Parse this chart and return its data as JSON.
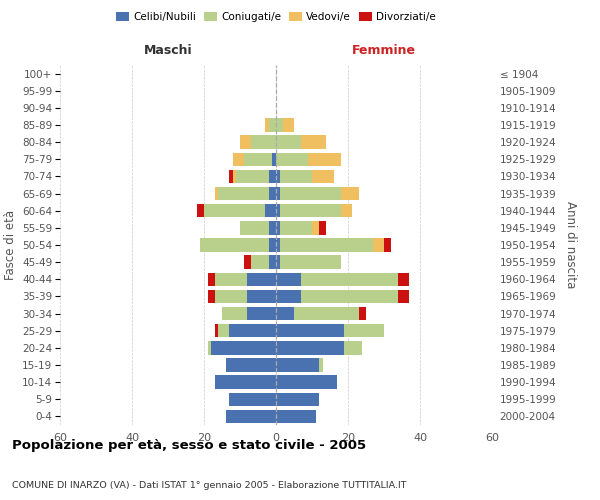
{
  "age_groups": [
    "0-4",
    "5-9",
    "10-14",
    "15-19",
    "20-24",
    "25-29",
    "30-34",
    "35-39",
    "40-44",
    "45-49",
    "50-54",
    "55-59",
    "60-64",
    "65-69",
    "70-74",
    "75-79",
    "80-84",
    "85-89",
    "90-94",
    "95-99",
    "100+"
  ],
  "birth_years": [
    "2000-2004",
    "1995-1999",
    "1990-1994",
    "1985-1989",
    "1980-1984",
    "1975-1979",
    "1970-1974",
    "1965-1969",
    "1960-1964",
    "1955-1959",
    "1950-1954",
    "1945-1949",
    "1940-1944",
    "1935-1939",
    "1930-1934",
    "1925-1929",
    "1920-1924",
    "1915-1919",
    "1910-1914",
    "1905-1909",
    "≤ 1904"
  ],
  "colors": {
    "celibe": "#4a72b0",
    "coniugato": "#b8d08c",
    "vedovo": "#f0c060",
    "divorziato": "#cc1111"
  },
  "maschi": {
    "celibe": [
      14,
      13,
      17,
      14,
      18,
      13,
      8,
      8,
      8,
      2,
      2,
      2,
      3,
      2,
      2,
      1,
      0,
      0,
      0,
      0,
      0
    ],
    "coniugato": [
      0,
      0,
      0,
      0,
      1,
      3,
      7,
      9,
      9,
      5,
      19,
      8,
      17,
      14,
      9,
      8,
      7,
      2,
      0,
      0,
      0
    ],
    "vedovo": [
      0,
      0,
      0,
      0,
      0,
      0,
      0,
      0,
      0,
      0,
      0,
      0,
      0,
      1,
      1,
      3,
      3,
      1,
      0,
      0,
      0
    ],
    "divorziato": [
      0,
      0,
      0,
      0,
      0,
      1,
      0,
      2,
      2,
      2,
      0,
      0,
      2,
      0,
      1,
      0,
      0,
      0,
      0,
      0,
      0
    ]
  },
  "femmine": {
    "nubile": [
      11,
      12,
      17,
      12,
      19,
      19,
      5,
      7,
      7,
      1,
      1,
      1,
      1,
      1,
      1,
      0,
      0,
      0,
      0,
      0,
      0
    ],
    "coniugata": [
      0,
      0,
      0,
      1,
      5,
      11,
      18,
      27,
      27,
      17,
      26,
      9,
      17,
      17,
      9,
      9,
      7,
      2,
      0,
      0,
      0
    ],
    "vedova": [
      0,
      0,
      0,
      0,
      0,
      0,
      0,
      0,
      0,
      0,
      3,
      2,
      3,
      5,
      6,
      9,
      7,
      3,
      0,
      0,
      0
    ],
    "divorziata": [
      0,
      0,
      0,
      0,
      0,
      0,
      2,
      3,
      3,
      0,
      2,
      2,
      0,
      0,
      0,
      0,
      0,
      0,
      0,
      0,
      0
    ]
  },
  "xlim": 60,
  "xtick_step": 20,
  "xlabel_left": "Maschi",
  "xlabel_right": "Femmine",
  "ylabel_left": "Fasce di età",
  "ylabel_right": "Anni di nascita",
  "title": "Popolazione per età, sesso e stato civile - 2005",
  "subtitle": "COMUNE DI INARZO (VA) - Dati ISTAT 1° gennaio 2005 - Elaborazione TUTTITALIA.IT",
  "legend_labels": [
    "Celibi/Nubili",
    "Coniugati/e",
    "Vedovi/e",
    "Divorziati/e"
  ]
}
